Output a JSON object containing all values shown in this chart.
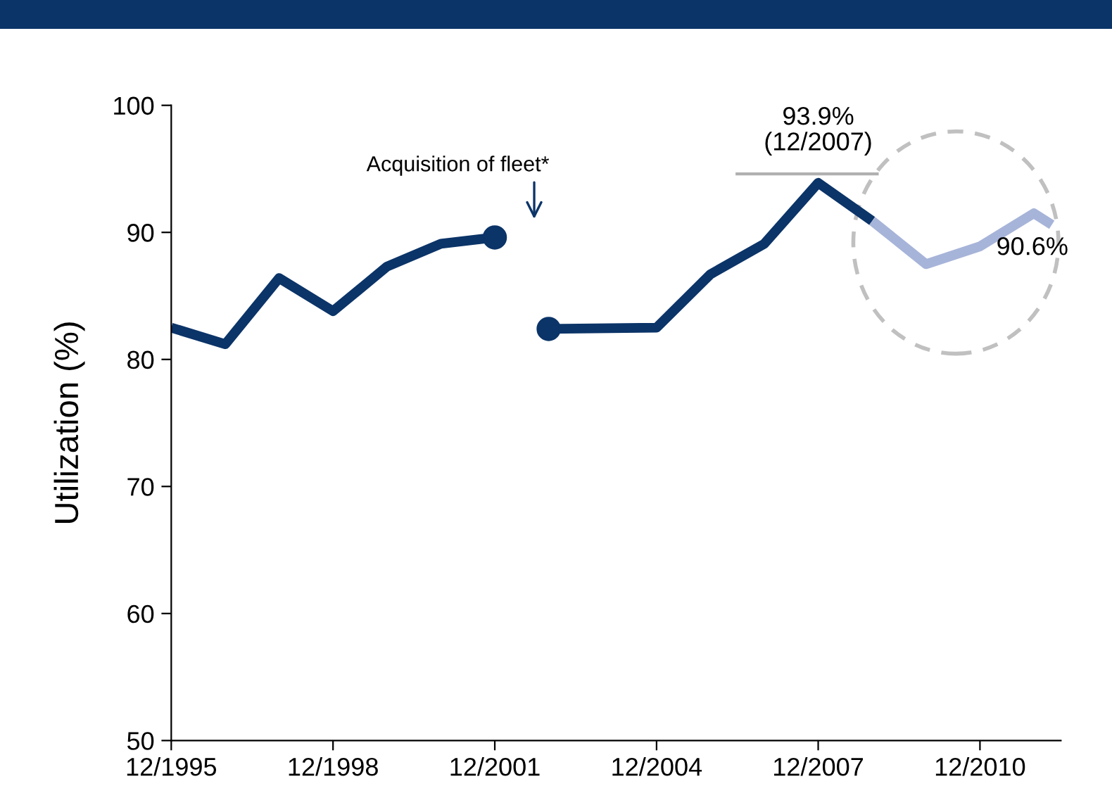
{
  "chart_data": {
    "type": "line",
    "ylabel": "Utilization (%)",
    "series": [
      {
        "color": "#0b3468",
        "x": [
          "1995-12",
          "1996-12",
          "1997-12",
          "1998-12",
          "1999-12",
          "2000-12",
          "2001-12"
        ],
        "values": [
          82.5,
          81.2,
          86.4,
          83.8,
          87.3,
          89.1,
          89.6
        ]
      },
      {
        "color": "#0b3468",
        "x": [
          "2002-12",
          "2004-12",
          "2005-12",
          "2006-12",
          "2007-12",
          "2008-12"
        ],
        "values": [
          82.4,
          82.5,
          86.7,
          89.1,
          93.9,
          90.9
        ]
      },
      {
        "color": "#a7b4d9",
        "x": [
          "2008-12",
          "2009-12",
          "2010-12",
          "2011-12",
          "2012-04"
        ],
        "values": [
          90.9,
          87.5,
          88.9,
          91.5,
          90.6
        ]
      },
      {
        "type": "scatter",
        "color": "#0b3468",
        "x": [
          "2001-12",
          "2002-12"
        ],
        "values": [
          89.6,
          82.4
        ]
      }
    ],
    "xlim": [
      "1995-12",
      "2012-06"
    ],
    "xticks": [
      {
        "value": "1995-12",
        "label": "12/1995"
      },
      {
        "value": "1998-12",
        "label": "12/1998"
      },
      {
        "value": "2001-12",
        "label": "12/2001"
      },
      {
        "value": "2004-12",
        "label": "12/2004"
      },
      {
        "value": "2007-12",
        "label": "12/2007"
      },
      {
        "value": "2010-12",
        "label": "12/2010"
      }
    ],
    "ylim": [
      50,
      100
    ],
    "yticks": [
      50,
      60,
      70,
      80,
      90,
      100
    ],
    "grid": false,
    "legend": false,
    "annotations": [
      "Acquisition of fleet*",
      {
        "text": "93.9%\n(12/2007)",
        "x": "2007-12",
        "y": 93.9
      },
      {
        "text": "90.6%",
        "x": "2012-04",
        "y": 90.6
      }
    ]
  }
}
